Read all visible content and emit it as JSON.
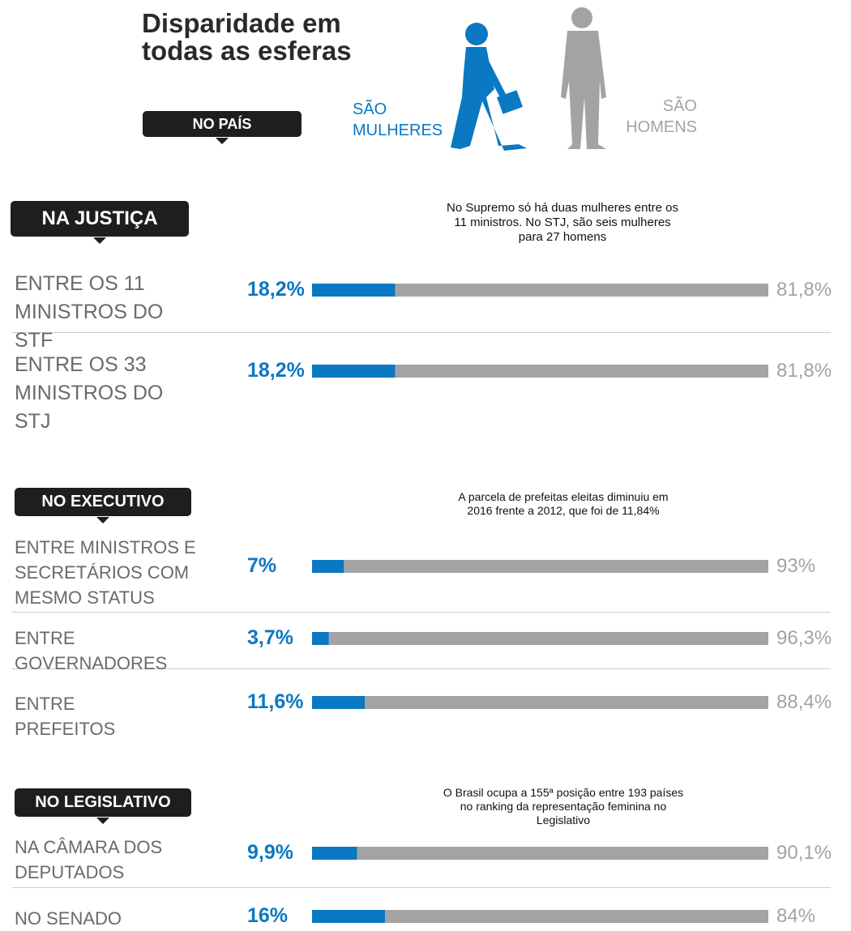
{
  "title": "Disparidade em todas as esferas",
  "country_tag": "NO PAÍS",
  "legend": {
    "women": "SÃO MULHERES",
    "men": "SÃO HOMENS",
    "women_color": "#0a78c2",
    "men_color": "#a3a3a5"
  },
  "sections": [
    {
      "heading": "NA JUSTIÇA",
      "note": "No Supremo só há duas mulheres entre os 11 ministros. No STJ, são seis mulheres para 27 homens",
      "rows": [
        {
          "label": "ENTRE OS 11 MINISTROS DO STF",
          "women": 18.2,
          "women_label": "18,2%",
          "men": 81.8,
          "men_label": "81,8%"
        },
        {
          "label": "ENTRE OS 33 MINISTROS DO STJ",
          "women": 18.2,
          "women_label": "18,2%",
          "men": 81.8,
          "men_label": "81,8%"
        }
      ]
    },
    {
      "heading": "NO EXECUTIVO",
      "note": "A parcela de prefeitas eleitas diminuiu em 2016 frente a 2012, que foi de 11,84%",
      "rows": [
        {
          "label": "ENTRE MINISTROS E SECRETÁRIOS COM MESMO STATUS",
          "women": 7,
          "women_label": "7%",
          "men": 93,
          "men_label": "93%"
        },
        {
          "label": "ENTRE GOVERNADORES",
          "women": 3.7,
          "women_label": "3,7%",
          "men": 96.3,
          "men_label": "96,3%"
        },
        {
          "label": "ENTRE PREFEITOS",
          "women": 11.6,
          "women_label": "11,6%",
          "men": 88.4,
          "men_label": "88,4%"
        }
      ]
    },
    {
      "heading": "NO LEGISLATIVO",
      "note": "O Brasil ocupa a 155ª posição entre 193 países no ranking da representação feminina no Legislativo",
      "rows": [
        {
          "label": "NA CÂMARA DOS DEPUTADOS",
          "women": 9.9,
          "women_label": "9,9%",
          "men": 90.1,
          "men_label": "90,1%"
        },
        {
          "label": "NO SENADO",
          "women": 16,
          "women_label": "16%",
          "men": 84,
          "men_label": "84%"
        }
      ]
    }
  ]
}
